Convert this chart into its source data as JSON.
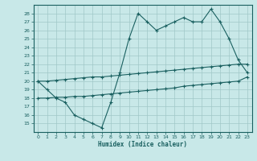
{
  "xlabel": "Humidex (Indice chaleur)",
  "ylabel": "",
  "bg_color": "#c8e8e8",
  "grid_color": "#a0c8c8",
  "line_color": "#1a6060",
  "xlim": [
    -0.5,
    23.5
  ],
  "ylim": [
    14.0,
    29.0
  ],
  "xticks": [
    0,
    1,
    2,
    3,
    4,
    5,
    6,
    7,
    8,
    9,
    10,
    11,
    12,
    13,
    14,
    15,
    16,
    17,
    18,
    19,
    20,
    21,
    22,
    23
  ],
  "yticks": [
    15,
    16,
    17,
    18,
    19,
    20,
    21,
    22,
    23,
    24,
    25,
    26,
    27,
    28
  ],
  "line1_x": [
    0,
    1,
    2,
    3,
    4,
    5,
    6,
    7,
    8,
    9,
    10,
    11,
    12,
    13,
    14,
    15,
    16,
    17,
    18,
    19,
    20,
    21,
    22,
    23
  ],
  "line1_y": [
    20,
    19,
    18,
    17.5,
    16,
    15.5,
    15,
    14.5,
    17.5,
    21,
    25,
    28,
    27,
    26,
    26.5,
    27,
    27.5,
    27,
    27,
    28.5,
    27,
    25,
    22.5,
    21
  ],
  "line2_x": [
    0,
    1,
    2,
    3,
    4,
    5,
    6,
    7,
    8,
    9,
    10,
    11,
    12,
    13,
    14,
    15,
    16,
    17,
    18,
    19,
    20,
    21,
    22,
    23
  ],
  "line2_y": [
    20.0,
    20.0,
    20.1,
    20.2,
    20.3,
    20.4,
    20.5,
    20.5,
    20.6,
    20.7,
    20.8,
    20.9,
    21.0,
    21.1,
    21.2,
    21.3,
    21.4,
    21.5,
    21.6,
    21.7,
    21.8,
    21.9,
    22.0,
    22.0
  ],
  "line3_x": [
    0,
    1,
    2,
    3,
    4,
    5,
    6,
    7,
    8,
    9,
    10,
    11,
    12,
    13,
    14,
    15,
    16,
    17,
    18,
    19,
    20,
    21,
    22,
    23
  ],
  "line3_y": [
    18.0,
    18.0,
    18.1,
    18.1,
    18.2,
    18.2,
    18.3,
    18.4,
    18.5,
    18.6,
    18.7,
    18.8,
    18.9,
    19.0,
    19.1,
    19.2,
    19.4,
    19.5,
    19.6,
    19.7,
    19.8,
    19.9,
    20.0,
    20.5
  ]
}
